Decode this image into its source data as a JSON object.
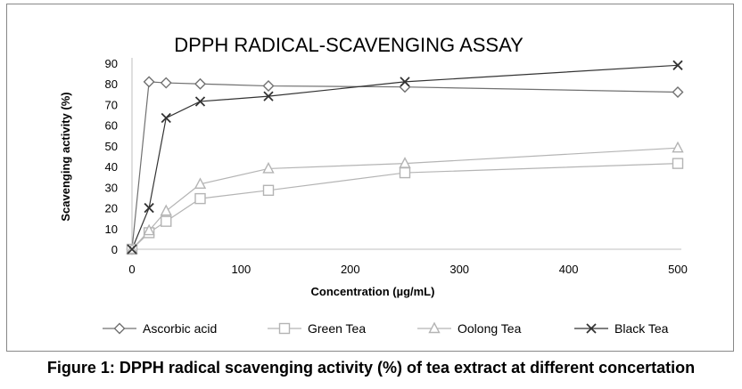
{
  "caption": "Figure 1: DPPH radical scavenging activity (%) of tea extract at different concertation",
  "chart_data": {
    "type": "line",
    "title": "DPPH RADICAL-SCAVENGING ASSAY",
    "xlabel": "Concentration (µg/mL)",
    "ylabel": "Scavenging activity (%)",
    "xlim": [
      0,
      500
    ],
    "ylim": [
      0,
      90
    ],
    "xticks": [
      0,
      100,
      200,
      300,
      400,
      500
    ],
    "yticks": [
      0,
      10,
      20,
      30,
      40,
      50,
      60,
      70,
      80,
      90
    ],
    "x": [
      0,
      15.625,
      31.25,
      62.5,
      125,
      250,
      500
    ],
    "grid": false,
    "legend_position": "bottom",
    "series": [
      {
        "name": "Ascorbic acid",
        "marker": "diamond",
        "color": "#707070",
        "values": [
          0,
          81,
          80.5,
          80,
          79,
          78.5,
          76
        ]
      },
      {
        "name": "Green Tea",
        "marker": "square",
        "color": "#b4b4b4",
        "values": [
          0,
          8,
          13.5,
          24.5,
          28.5,
          37,
          41.5
        ]
      },
      {
        "name": "Oolong Tea",
        "marker": "triangle",
        "color": "#b4b4b4",
        "values": [
          0,
          9,
          18.5,
          31.5,
          39,
          41.5,
          49
        ]
      },
      {
        "name": "Black Tea",
        "marker": "x",
        "color": "#333333",
        "values": [
          0,
          20,
          63.5,
          71.5,
          74,
          81,
          89
        ]
      }
    ]
  }
}
